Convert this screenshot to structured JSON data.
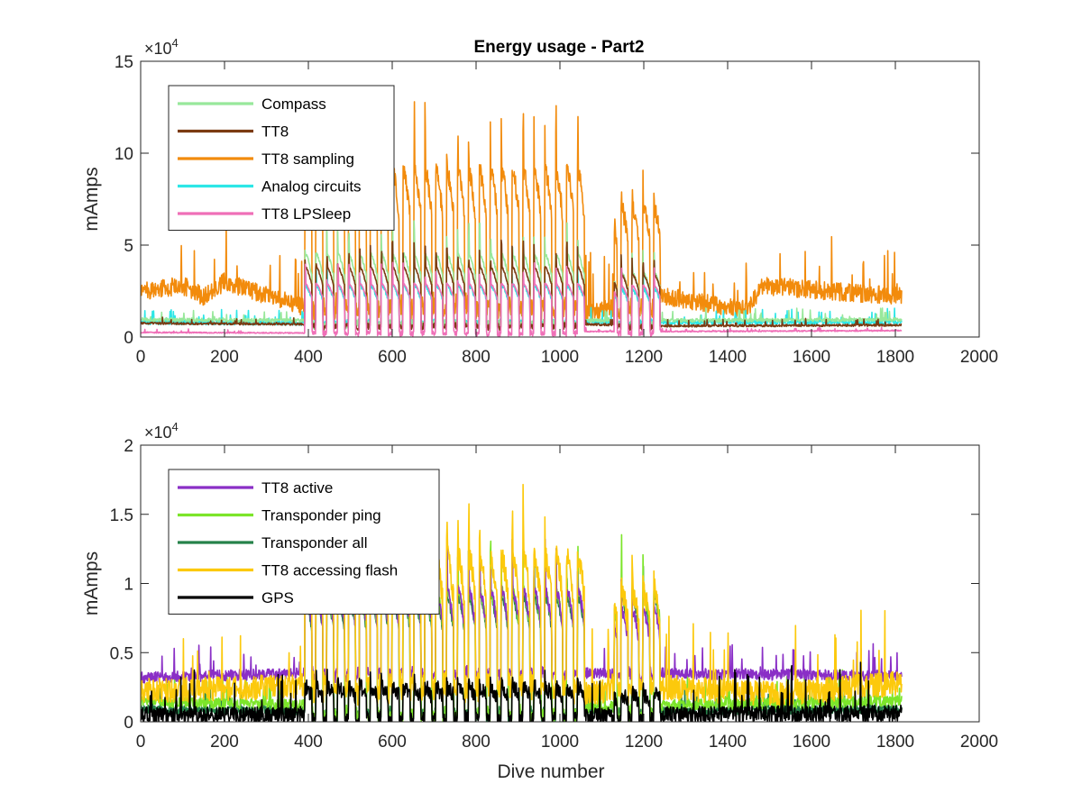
{
  "figure": {
    "title": "Energy usage - Part2",
    "background": "#ffffff"
  },
  "chart_data": [
    {
      "type": "line",
      "title": "Energy usage - Part2",
      "xlabel": "",
      "ylabel": "mAmps",
      "xlim": [
        0,
        2000
      ],
      "ylim": [
        0,
        150000
      ],
      "xticks": [
        0,
        200,
        400,
        600,
        800,
        1000,
        1200,
        1400,
        1600,
        1800,
        2000
      ],
      "yticks": [
        0,
        50000,
        100000,
        150000
      ],
      "ytick_labels": [
        "0",
        "5",
        "10",
        "15"
      ],
      "xtick_labels": [
        "0",
        "200",
        "400",
        "600",
        "800",
        "1000",
        "1200",
        "1400",
        "1600",
        "1800",
        "2000"
      ],
      "exponent_label": "×10",
      "exponent_power": "4",
      "grid": false,
      "legend_position": "top-left",
      "series": [
        {
          "name": "Compass",
          "color": "#98e89b",
          "z": 3,
          "base": [
            [
              0,
              9500
            ],
            [
              380,
              9000
            ],
            [
              1050,
              9000
            ],
            [
              1250,
              9000
            ],
            [
              1820,
              9500
            ]
          ],
          "cycle_peak": 45000,
          "cycle_low": 5000,
          "cycle_peak2": 35000,
          "noise": 1000
        },
        {
          "name": "TT8",
          "color": "#7b3b12",
          "z": 4,
          "base": [
            [
              0,
              7500
            ],
            [
              380,
              7000
            ],
            [
              1050,
              7000
            ],
            [
              1250,
              6000
            ],
            [
              1820,
              6500
            ]
          ],
          "cycle_peak": 38000,
          "cycle_low": 4000,
          "cycle_peak2": 34000,
          "noise": 600
        },
        {
          "name": "TT8 sampling",
          "color": "#f28b0c",
          "z": 1,
          "base": [
            [
              0,
              25000
            ],
            [
              100,
              28000
            ],
            [
              150,
              22000
            ],
            [
              200,
              30000
            ],
            [
              380,
              17000
            ],
            [
              1050,
              12000
            ],
            [
              1250,
              22000
            ],
            [
              1450,
              15000
            ],
            [
              1480,
              28000
            ],
            [
              1820,
              22000
            ]
          ],
          "cycle_peak": 90000,
          "cycle_low": 12000,
          "cycle_peak2": 70000,
          "noise": 5000
        },
        {
          "name": "Analog circuits",
          "color": "#2de6e6",
          "z": 2,
          "base": [
            [
              0,
              8000
            ],
            [
              380,
              7500
            ],
            [
              1050,
              8500
            ],
            [
              1250,
              8000
            ],
            [
              1820,
              8000
            ]
          ],
          "cycle_peak": 28000,
          "cycle_low": 7000,
          "cycle_peak2": 26000,
          "noise": 1200
        },
        {
          "name": "TT8 LPSleep",
          "color": "#ef6fb7",
          "z": 5,
          "base": [
            [
              0,
              2500
            ],
            [
              380,
              2200
            ],
            [
              1050,
              3000
            ],
            [
              1250,
              3000
            ],
            [
              1820,
              3500
            ]
          ],
          "cycle_peak": 29000,
          "cycle_low": 500,
          "cycle_peak2": 28000,
          "noise": 300
        }
      ]
    },
    {
      "type": "line",
      "title": "",
      "xlabel": "Dive number",
      "ylabel": "mAmps",
      "xlim": [
        0,
        2000
      ],
      "ylim": [
        0,
        20000
      ],
      "xticks": [
        0,
        200,
        400,
        600,
        800,
        1000,
        1200,
        1400,
        1600,
        1800,
        2000
      ],
      "yticks": [
        0,
        5000,
        10000,
        15000,
        20000
      ],
      "ytick_labels": [
        "0",
        "0.5",
        "1",
        "1.5",
        "2"
      ],
      "xtick_labels": [
        "0",
        "200",
        "400",
        "600",
        "800",
        "1000",
        "1200",
        "1400",
        "1600",
        "1800",
        "2000"
      ],
      "exponent_label": "×10",
      "exponent_power": "4",
      "grid": false,
      "legend_position": "top-left",
      "series": [
        {
          "name": "TT8 active",
          "color": "#8a2fc6",
          "z": 3,
          "base": [
            [
              0,
              3200
            ],
            [
              380,
              3500
            ],
            [
              1050,
              3500
            ],
            [
              1250,
              3500
            ],
            [
              1820,
              3300
            ]
          ],
          "cycle_peak": 9500,
          "cycle_low": 3200,
          "cycle_peak2": 8000,
          "noise": 400
        },
        {
          "name": "Transponder ping",
          "color": "#7ce52a",
          "z": 2,
          "base": [
            [
              0,
              1500
            ],
            [
              380,
              1200
            ],
            [
              1050,
              1000
            ],
            [
              1250,
              1200
            ],
            [
              1820,
              1500
            ]
          ],
          "cycle_peak": 9500,
          "cycle_low": 0,
          "cycle_peak2": 9500,
          "noise": 400
        },
        {
          "name": "Transponder all",
          "color": "#26824a",
          "z": 1,
          "base": [
            [
              0,
              900
            ],
            [
              380,
              800
            ],
            [
              1050,
              800
            ],
            [
              1250,
              800
            ],
            [
              1820,
              900
            ]
          ],
          "cycle_peak": 9000,
          "cycle_low": 0,
          "cycle_peak2": 9000,
          "noise": 300
        },
        {
          "name": "TT8 accessing flash",
          "color": "#fcc90c",
          "z": 4,
          "base": [
            [
              0,
              2200
            ],
            [
              380,
              2600
            ],
            [
              1050,
              2000
            ],
            [
              1250,
              2500
            ],
            [
              1500,
              2000
            ],
            [
              1820,
              2800
            ]
          ],
          "cycle_peak": 12000,
          "cycle_low": 2000,
          "cycle_peak2": 9500,
          "noise": 900
        },
        {
          "name": "GPS",
          "color": "#000000",
          "z": 5,
          "base": [
            [
              0,
              500
            ],
            [
              380,
              500
            ],
            [
              1050,
              400
            ],
            [
              1250,
              500
            ],
            [
              1820,
              600
            ]
          ],
          "cycle_peak": 2500,
          "cycle_low": 0,
          "cycle_peak2": 2000,
          "noise": 600
        }
      ]
    }
  ]
}
